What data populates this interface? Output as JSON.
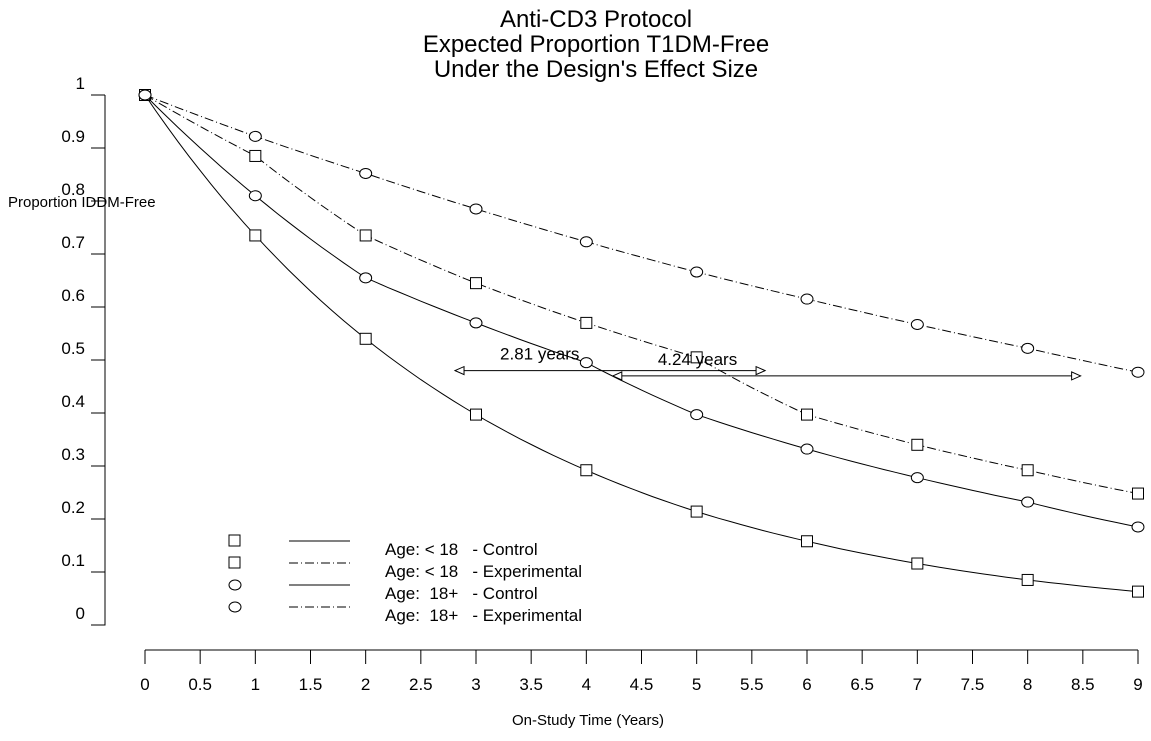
{
  "chart_data": {
    "type": "line",
    "title": [
      "Anti-CD3 Protocol",
      "Expected Proportion T1DM-Free",
      "Under the Design's Effect Size"
    ],
    "xlabel": "On-Study Time (Years)",
    "ylabel": "Proportion IDDM-Free",
    "xlim": [
      0,
      9
    ],
    "ylim": [
      0,
      1
    ],
    "xticks": [
      "0",
      "0.5",
      "1",
      "1.5",
      "2",
      "2.5",
      "3",
      "3.5",
      "4",
      "4.5",
      "5",
      "5.5",
      "6",
      "6.5",
      "7",
      "7.5",
      "8",
      "8.5",
      "9"
    ],
    "yticks": [
      "0",
      "0.1",
      "0.2",
      "0.3",
      "0.4",
      "0.5",
      "0.6",
      "0.7",
      "0.8",
      "0.9",
      "1"
    ],
    "grid": false,
    "legend_position": "bottom-left",
    "x": [
      0,
      1,
      2,
      3,
      4,
      5,
      6,
      7,
      8,
      9
    ],
    "series": [
      {
        "name": "Age: < 18   - Control",
        "marker": "square",
        "line": "solid",
        "values": [
          1.0,
          0.735,
          0.54,
          0.397,
          0.292,
          0.214,
          0.158,
          0.116,
          0.085,
          0.063
        ]
      },
      {
        "name": "Age: < 18   - Experimental",
        "marker": "square",
        "line": "dashdot",
        "values": [
          1.0,
          0.885,
          0.735,
          0.645,
          0.57,
          0.505,
          0.397,
          0.34,
          0.292,
          0.248
        ]
      },
      {
        "name": "Age:  18+   - Control",
        "marker": "circle",
        "line": "solid",
        "values": [
          1.0,
          0.81,
          0.655,
          0.57,
          0.495,
          0.397,
          0.332,
          0.278,
          0.232,
          0.185
        ]
      },
      {
        "name": "Age:  18+   - Experimental",
        "marker": "circle",
        "line": "dashdot",
        "values": [
          1.0,
          0.922,
          0.852,
          0.785,
          0.723,
          0.666,
          0.615,
          0.567,
          0.522,
          0.477
        ]
      }
    ],
    "annotations": [
      {
        "text": "2.81  years",
        "x_start": 2.81,
        "x_end": 5.62,
        "y": 0.48
      },
      {
        "text": "4.24  years",
        "x_start": 4.24,
        "x_end": 8.48,
        "y": 0.47
      }
    ]
  }
}
